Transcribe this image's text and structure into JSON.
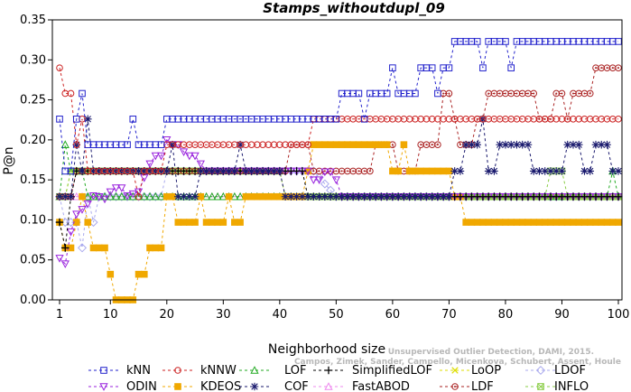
{
  "chart_data": {
    "type": "line",
    "title": "Stamps_withoutdupl_09",
    "xlabel": "Neighborhood size",
    "ylabel": "P@n",
    "xlim": [
      1,
      100
    ],
    "ylim": [
      0,
      0.35
    ],
    "xticks": [
      1,
      10,
      20,
      30,
      40,
      50,
      60,
      70,
      80,
      90,
      100
    ],
    "yticks": [
      0.0,
      0.05,
      0.1,
      0.15,
      0.2,
      0.25,
      0.3,
      0.35
    ],
    "ytick_labels": [
      "0.00",
      "0.05",
      "0.10",
      "0.15",
      "0.20",
      "0.25",
      "0.30",
      "0.35"
    ],
    "grid": false,
    "legend_position": "bottom",
    "watermark_lines": [
      "Campos, Zimek, Sander, Campello, Micenkova, Schubert, Assent, Houle",
      "Unsupervised Outlier Detection, DAMI, 2015."
    ],
    "series": [
      {
        "name": "kNN",
        "color": "#2222cc",
        "marker": "square",
        "points": [
          [
            1,
            0.226
          ],
          [
            2,
            0.161
          ],
          [
            3,
            0.161
          ],
          [
            4,
            0.226
          ],
          [
            5,
            0.258
          ],
          [
            6,
            0.194
          ],
          [
            13,
            0.194
          ],
          [
            14,
            0.226
          ],
          [
            15,
            0.194
          ],
          [
            19,
            0.194
          ],
          [
            20,
            0.226
          ],
          [
            50,
            0.226
          ],
          [
            51,
            0.258
          ],
          [
            54,
            0.258
          ],
          [
            55,
            0.226
          ],
          [
            56,
            0.258
          ],
          [
            59,
            0.258
          ],
          [
            60,
            0.29
          ],
          [
            61,
            0.258
          ],
          [
            64,
            0.258
          ],
          [
            65,
            0.29
          ],
          [
            67,
            0.29
          ],
          [
            68,
            0.258
          ],
          [
            69,
            0.29
          ],
          [
            70,
            0.29
          ],
          [
            71,
            0.323
          ],
          [
            75,
            0.323
          ],
          [
            76,
            0.29
          ],
          [
            77,
            0.323
          ],
          [
            80,
            0.323
          ],
          [
            81,
            0.29
          ],
          [
            82,
            0.323
          ],
          [
            100,
            0.323
          ]
        ]
      },
      {
        "name": "kNNW",
        "color": "#cc2222",
        "marker": "circle",
        "points": [
          [
            1,
            0.29
          ],
          [
            2,
            0.258
          ],
          [
            3,
            0.258
          ],
          [
            4,
            0.194
          ],
          [
            5,
            0.226
          ],
          [
            6,
            0.161
          ],
          [
            14,
            0.161
          ],
          [
            15,
            0.129
          ],
          [
            16,
            0.161
          ],
          [
            19,
            0.161
          ],
          [
            20,
            0.194
          ],
          [
            38,
            0.194
          ],
          [
            39,
            0.194
          ],
          [
            40,
            0.194
          ],
          [
            45,
            0.194
          ],
          [
            46,
            0.226
          ],
          [
            100,
            0.226
          ]
        ]
      },
      {
        "name": "LOF",
        "color": "#22aa22",
        "marker": "triangle-up",
        "points": [
          [
            1,
            0.129
          ],
          [
            2,
            0.194
          ],
          [
            3,
            0.161
          ],
          [
            5,
            0.161
          ],
          [
            6,
            0.129
          ],
          [
            98,
            0.129
          ],
          [
            99,
            0.161
          ],
          [
            100,
            0.129
          ]
        ]
      },
      {
        "name": "SimplifiedLOF",
        "color": "#000000",
        "marker": "plus",
        "points": [
          [
            1,
            0.097
          ],
          [
            2,
            0.065
          ],
          [
            3,
            0.129
          ],
          [
            4,
            0.161
          ],
          [
            5,
            0.161
          ],
          [
            44,
            0.161
          ],
          [
            45,
            0.129
          ],
          [
            100,
            0.129
          ]
        ]
      },
      {
        "name": "LoOP",
        "color": "#dddd00",
        "marker": "x",
        "points": [
          [
            1,
            0.129
          ],
          [
            2,
            0.129
          ],
          [
            3,
            0.161
          ],
          [
            40,
            0.161
          ],
          [
            41,
            0.129
          ],
          [
            100,
            0.129
          ]
        ]
      },
      {
        "name": "LDOF",
        "color": "#aaaaee",
        "marker": "diamond",
        "points": [
          [
            1,
            0.129
          ],
          [
            2,
            0.097
          ],
          [
            4,
            0.097
          ],
          [
            5,
            0.065
          ],
          [
            6,
            0.129
          ],
          [
            7,
            0.097
          ],
          [
            8,
            0.129
          ],
          [
            19,
            0.129
          ],
          [
            20,
            0.161
          ],
          [
            45,
            0.161
          ],
          [
            46,
            0.161
          ],
          [
            50,
            0.129
          ],
          [
            100,
            0.129
          ]
        ]
      },
      {
        "name": "ODIN",
        "color": "#9922dd",
        "marker": "triangle-down",
        "points": [
          [
            1,
            0.052
          ],
          [
            2,
            0.045
          ],
          [
            3,
            0.085
          ],
          [
            4,
            0.107
          ],
          [
            5,
            0.113
          ],
          [
            6,
            0.12
          ],
          [
            7,
            0.13
          ],
          [
            8,
            0.129
          ],
          [
            9,
            0.126
          ],
          [
            10,
            0.135
          ],
          [
            11,
            0.14
          ],
          [
            12,
            0.14
          ],
          [
            13,
            0.13
          ],
          [
            15,
            0.135
          ],
          [
            17,
            0.17
          ],
          [
            18,
            0.18
          ],
          [
            19,
            0.18
          ],
          [
            20,
            0.2
          ],
          [
            21,
            0.194
          ],
          [
            22,
            0.194
          ],
          [
            23,
            0.185
          ],
          [
            24,
            0.18
          ],
          [
            25,
            0.18
          ],
          [
            26,
            0.17
          ],
          [
            27,
            0.161
          ],
          [
            28,
            0.161
          ],
          [
            45,
            0.161
          ],
          [
            46,
            0.15
          ],
          [
            47,
            0.15
          ],
          [
            48,
            0.16
          ],
          [
            49,
            0.16
          ],
          [
            50,
            0.15
          ],
          [
            51,
            0.129
          ],
          [
            100,
            0.129
          ]
        ]
      },
      {
        "name": "KDEOS",
        "color": "#f0a800",
        "marker": "square-filled",
        "points": [
          [
            1,
            0.097
          ],
          [
            2,
            0.065
          ],
          [
            3,
            0.065
          ],
          [
            4,
            0.097
          ],
          [
            5,
            0.129
          ],
          [
            6,
            0.097
          ],
          [
            7,
            0.065
          ],
          [
            9,
            0.065
          ],
          [
            10,
            0.032
          ],
          [
            11,
            0.0
          ],
          [
            14,
            0.0
          ],
          [
            15,
            0.032
          ],
          [
            16,
            0.032
          ],
          [
            17,
            0.065
          ],
          [
            19,
            0.065
          ],
          [
            20,
            0.129
          ],
          [
            21,
            0.129
          ],
          [
            22,
            0.097
          ],
          [
            25,
            0.097
          ],
          [
            26,
            0.129
          ],
          [
            27,
            0.097
          ],
          [
            30,
            0.097
          ],
          [
            31,
            0.129
          ],
          [
            32,
            0.097
          ],
          [
            33,
            0.097
          ],
          [
            34,
            0.129
          ],
          [
            44,
            0.129
          ],
          [
            45,
            0.161
          ],
          [
            46,
            0.194
          ],
          [
            58,
            0.194
          ],
          [
            59,
            0.194
          ],
          [
            60,
            0.161
          ],
          [
            61,
            0.161
          ],
          [
            62,
            0.194
          ],
          [
            63,
            0.161
          ],
          [
            64,
            0.161
          ],
          [
            70,
            0.161
          ],
          [
            71,
            0.129
          ],
          [
            72,
            0.129
          ],
          [
            73,
            0.097
          ],
          [
            100,
            0.097
          ]
        ]
      },
      {
        "name": "COF",
        "color": "#1a1a6e",
        "marker": "star",
        "points": [
          [
            1,
            0.129
          ],
          [
            2,
            0.129
          ],
          [
            3,
            0.129
          ],
          [
            4,
            0.194
          ],
          [
            5,
            0.161
          ],
          [
            6,
            0.226
          ],
          [
            7,
            0.161
          ],
          [
            20,
            0.161
          ],
          [
            21,
            0.194
          ],
          [
            22,
            0.129
          ],
          [
            25,
            0.129
          ],
          [
            26,
            0.161
          ],
          [
            32,
            0.161
          ],
          [
            33,
            0.194
          ],
          [
            34,
            0.161
          ],
          [
            40,
            0.161
          ],
          [
            41,
            0.129
          ],
          [
            70,
            0.129
          ],
          [
            71,
            0.161
          ],
          [
            72,
            0.161
          ],
          [
            73,
            0.194
          ],
          [
            75,
            0.194
          ],
          [
            76,
            0.226
          ],
          [
            77,
            0.161
          ],
          [
            78,
            0.161
          ],
          [
            79,
            0.194
          ],
          [
            84,
            0.194
          ],
          [
            85,
            0.161
          ],
          [
            90,
            0.161
          ],
          [
            91,
            0.194
          ],
          [
            93,
            0.194
          ],
          [
            94,
            0.161
          ],
          [
            95,
            0.161
          ],
          [
            96,
            0.194
          ],
          [
            98,
            0.194
          ],
          [
            99,
            0.161
          ],
          [
            100,
            0.161
          ]
        ]
      },
      {
        "name": "FastABOD",
        "color": "#ee88ee",
        "marker": "triangle-up-open",
        "points": [
          [
            1,
            0.129
          ],
          [
            100,
            0.129
          ]
        ]
      },
      {
        "name": "LDF",
        "color": "#aa2222",
        "marker": "circle-dot",
        "points": [
          [
            1,
            0.129
          ],
          [
            2,
            0.129
          ],
          [
            3,
            0.129
          ],
          [
            4,
            0.161
          ],
          [
            41,
            0.161
          ],
          [
            42,
            0.194
          ],
          [
            45,
            0.194
          ],
          [
            46,
            0.161
          ],
          [
            54,
            0.161
          ],
          [
            55,
            0.161
          ],
          [
            56,
            0.161
          ],
          [
            57,
            0.194
          ],
          [
            60,
            0.194
          ],
          [
            61,
            0.161
          ],
          [
            64,
            0.161
          ],
          [
            65,
            0.194
          ],
          [
            68,
            0.194
          ],
          [
            69,
            0.258
          ],
          [
            70,
            0.258
          ],
          [
            71,
            0.226
          ],
          [
            72,
            0.194
          ],
          [
            74,
            0.194
          ],
          [
            75,
            0.226
          ],
          [
            76,
            0.226
          ],
          [
            77,
            0.258
          ],
          [
            85,
            0.258
          ],
          [
            86,
            0.226
          ],
          [
            88,
            0.226
          ],
          [
            89,
            0.258
          ],
          [
            90,
            0.258
          ],
          [
            91,
            0.226
          ],
          [
            92,
            0.258
          ],
          [
            95,
            0.258
          ],
          [
            96,
            0.29
          ],
          [
            100,
            0.29
          ]
        ]
      },
      {
        "name": "INFLO",
        "color": "#88cc44",
        "marker": "square-x",
        "points": [
          [
            1,
            0.129
          ],
          [
            2,
            0.129
          ],
          [
            3,
            0.161
          ],
          [
            40,
            0.161
          ],
          [
            41,
            0.129
          ],
          [
            87,
            0.129
          ],
          [
            88,
            0.161
          ],
          [
            89,
            0.161
          ],
          [
            90,
            0.161
          ],
          [
            91,
            0.129
          ],
          [
            100,
            0.129
          ]
        ]
      }
    ]
  }
}
